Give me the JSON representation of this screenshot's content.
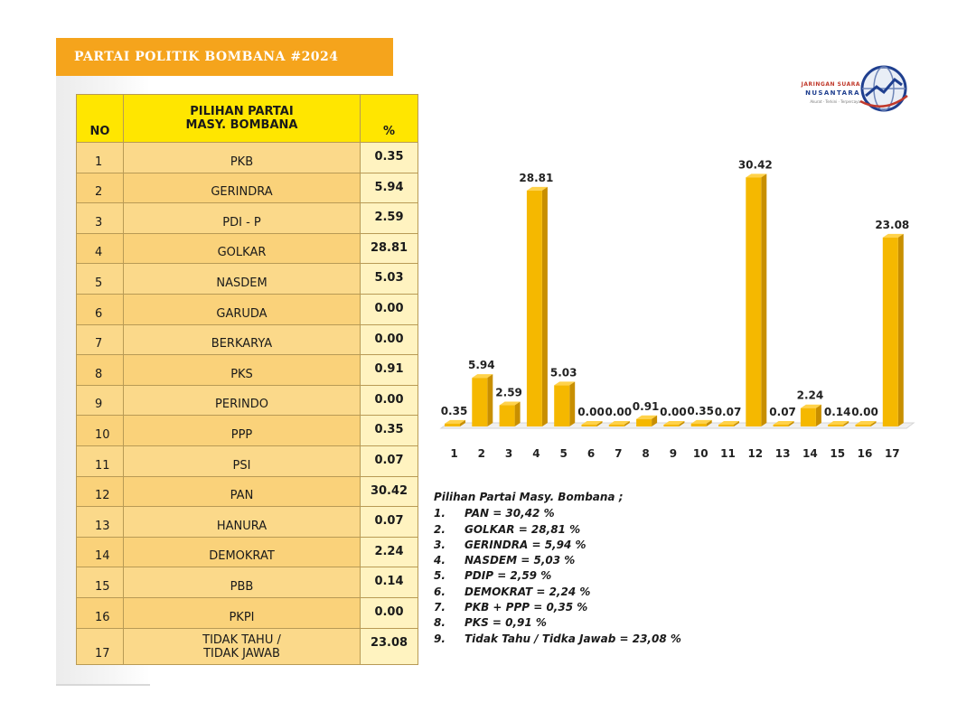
{
  "title": "PARTAI POLITIK BOMBANA #2024",
  "logo": {
    "line1": "JARINGAN SUARA",
    "line2": "NUSANTARA",
    "line3": "Akurat · Terkini · Terpercaya",
    "icon": "globe-icon"
  },
  "table": {
    "headers": {
      "no": "NO",
      "party_line1": "PILIHAN PARTAI",
      "party_line2": "MASY. BOMBANA",
      "pct": "%"
    },
    "rows": [
      {
        "no": "1",
        "name": "PKB",
        "pct": "0.35"
      },
      {
        "no": "2",
        "name": "GERINDRA",
        "pct": "5.94"
      },
      {
        "no": "3",
        "name": "PDI - P",
        "pct": "2.59"
      },
      {
        "no": "4",
        "name": "GOLKAR",
        "pct": "28.81"
      },
      {
        "no": "5",
        "name": "NASDEM",
        "pct": "5.03"
      },
      {
        "no": "6",
        "name": "GARUDA",
        "pct": "0.00"
      },
      {
        "no": "7",
        "name": "BERKARYA",
        "pct": "0.00"
      },
      {
        "no": "8",
        "name": "PKS",
        "pct": "0.91"
      },
      {
        "no": "9",
        "name": "PERINDO",
        "pct": "0.00"
      },
      {
        "no": "10",
        "name": "PPP",
        "pct": "0.35"
      },
      {
        "no": "11",
        "name": "PSI",
        "pct": "0.07"
      },
      {
        "no": "12",
        "name": "PAN",
        "pct": "30.42"
      },
      {
        "no": "13",
        "name": "HANURA",
        "pct": "0.07"
      },
      {
        "no": "14",
        "name": "DEMOKRAT",
        "pct": "2.24"
      },
      {
        "no": "15",
        "name": "PBB",
        "pct": "0.14"
      },
      {
        "no": "16",
        "name": "PKPI",
        "pct": "0.00"
      },
      {
        "no": "17",
        "name_line1": "TIDAK TAHU /",
        "name_line2": "TIDAK JAWAB",
        "pct": "23.08"
      }
    ]
  },
  "chart_data": {
    "type": "bar",
    "categories": [
      "1",
      "2",
      "3",
      "4",
      "5",
      "6",
      "7",
      "8",
      "9",
      "10",
      "11",
      "12",
      "13",
      "14",
      "15",
      "16",
      "17"
    ],
    "values": [
      0.35,
      5.94,
      2.59,
      28.81,
      5.03,
      0.0,
      0.0,
      0.91,
      0.0,
      0.35,
      0.07,
      30.42,
      0.07,
      2.24,
      0.14,
      0.0,
      23.08
    ],
    "labels": [
      "0.35",
      "5.94",
      "2.59",
      "28.81",
      "5.03",
      "0.00",
      "0.00",
      "0.91",
      "0.00",
      "0.35",
      "0.07",
      "30.42",
      "0.07",
      "2.24",
      "0.14",
      "0.00",
      "23.08"
    ],
    "ylim": [
      0,
      32
    ],
    "bar_color": "#f5b800",
    "grid": false,
    "legend": "none"
  },
  "summary": {
    "title": "Pilihan Partai Masy. Bombana ;",
    "items": [
      {
        "n": "1.",
        "text": "PAN = 30,42 %"
      },
      {
        "n": "2.",
        "text": "GOLKAR = 28,81 %"
      },
      {
        "n": "3.",
        "text": "GERINDRA = 5,94 %"
      },
      {
        "n": "4.",
        "text": "NASDEM = 5,03 %"
      },
      {
        "n": "5.",
        "text": "PDIP = 2,59 %"
      },
      {
        "n": "6.",
        "text": "DEMOKRAT = 2,24 %"
      },
      {
        "n": "7.",
        "text": "PKB + PPP = 0,35 %"
      },
      {
        "n": "8.",
        "text": "PKS = 0,91 %"
      },
      {
        "n": "9.",
        "text": "Tidak Tahu / Tidka Jawab = 23,08 %"
      }
    ]
  }
}
